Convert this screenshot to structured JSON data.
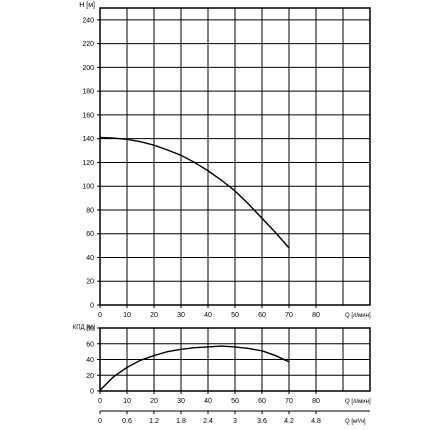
{
  "chart_data": [
    {
      "type": "line",
      "name": "head",
      "ylabel": "H [м]",
      "xlabel": "Q [л/мин]",
      "xlim": [
        0,
        100
      ],
      "ylim": [
        0,
        250
      ],
      "xticks": [
        0,
        10,
        20,
        30,
        40,
        50,
        60,
        70,
        80
      ],
      "yticks": [
        0,
        20,
        40,
        60,
        80,
        100,
        120,
        140,
        160,
        180,
        200,
        220,
        240
      ],
      "grid": true,
      "series": [
        {
          "x": [
            0,
            5,
            10,
            15,
            20,
            25,
            30,
            35,
            40,
            45,
            50,
            55,
            60,
            65,
            70
          ],
          "y": [
            141,
            140.5,
            139.5,
            137.5,
            134.5,
            130.5,
            126,
            120,
            113,
            105,
            96,
            85,
            73,
            61,
            48
          ]
        }
      ]
    },
    {
      "type": "line",
      "name": "efficiency",
      "ylabel": "КПД [%]",
      "xlabel": "Q [л/мин]",
      "xlabel2": "Q [м³/ч]",
      "xlim": [
        0,
        100
      ],
      "ylim": [
        0,
        80
      ],
      "xticks": [
        0,
        10,
        20,
        30,
        40,
        50,
        60,
        70,
        80
      ],
      "xticks2": [
        "0",
        "0.6",
        "1.2",
        "1.8",
        "2.4",
        "3",
        "3.6",
        "4.2",
        "4.8"
      ],
      "yticks": [
        0,
        20,
        40,
        60,
        80
      ],
      "grid": true,
      "series": [
        {
          "x": [
            0,
            5,
            10,
            15,
            20,
            25,
            30,
            35,
            40,
            45,
            50,
            55,
            60,
            65,
            70
          ],
          "y": [
            1,
            18,
            30,
            39,
            45,
            50,
            53,
            55,
            56,
            57,
            56,
            54,
            51,
            45,
            37
          ]
        }
      ]
    }
  ]
}
